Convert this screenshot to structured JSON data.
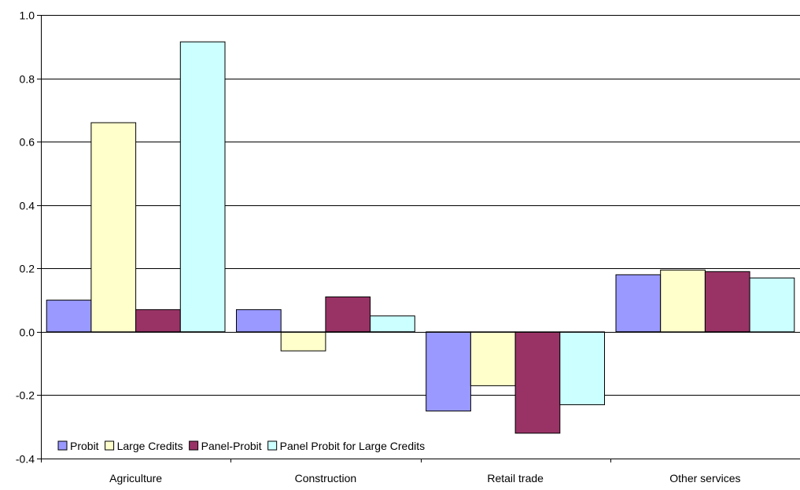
{
  "chart_data": {
    "type": "bar",
    "title": "",
    "xlabel": "",
    "ylabel": "",
    "categories": [
      "Agriculture",
      "Construction",
      "Retail trade",
      "Other services"
    ],
    "series": [
      {
        "name": "Probit",
        "values": [
          0.1,
          0.07,
          -0.25,
          0.18
        ],
        "color": "#9999ff"
      },
      {
        "name": "Large Credits",
        "values": [
          0.66,
          -0.06,
          -0.17,
          0.195
        ],
        "color": "#ffffcc"
      },
      {
        "name": "Panel-Probit",
        "values": [
          0.07,
          0.11,
          -0.32,
          0.19
        ],
        "color": "#993366"
      },
      {
        "name": "Panel Probit for Large Credits",
        "values": [
          0.915,
          0.05,
          -0.23,
          0.17
        ],
        "color": "#ccffff"
      }
    ],
    "ylim": [
      -0.4,
      1.0
    ],
    "yticks": [
      "1.0",
      "0.8",
      "0.6",
      "0.4",
      "0.2",
      "0.0",
      "-0.2",
      "-0.4"
    ],
    "ytick_values": [
      1.0,
      0.8,
      0.6,
      0.4,
      0.2,
      0.0,
      -0.2,
      -0.4
    ],
    "grid": true,
    "legend_position": "bottom-left"
  }
}
